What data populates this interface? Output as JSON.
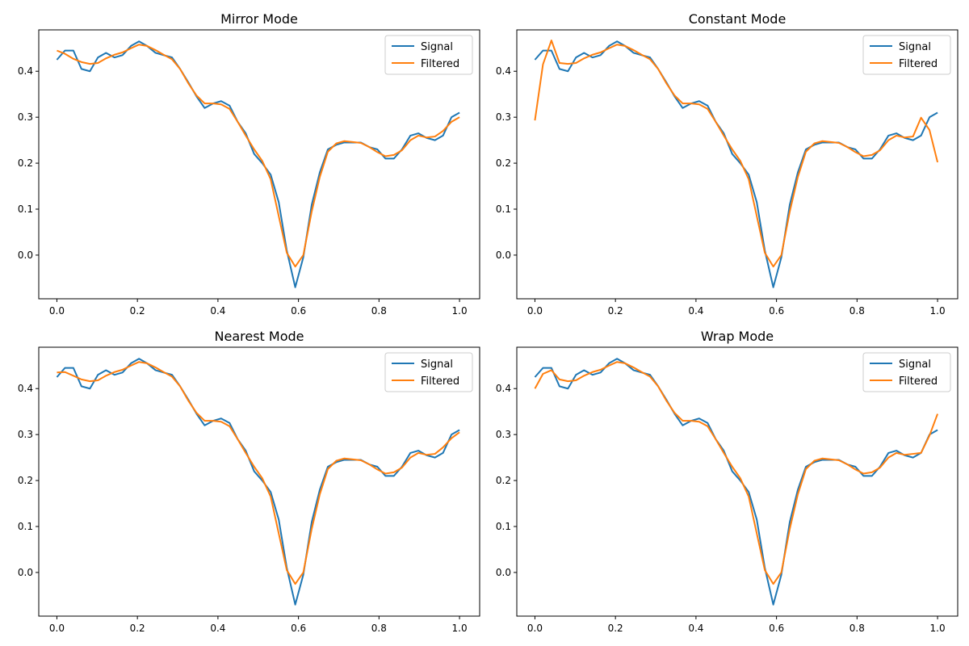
{
  "figure": {
    "colors": {
      "signal": "#1f77b4",
      "filtered": "#ff7f0e"
    }
  },
  "chart_data": [
    {
      "type": "line",
      "title": "Mirror Mode",
      "xlabel": "",
      "ylabel": "",
      "xlim": [
        -0.045,
        1.05
      ],
      "ylim": [
        -0.095,
        0.49
      ],
      "xticks": [
        0.0,
        0.2,
        0.4,
        0.6,
        0.8,
        1.0
      ],
      "yticks": [
        0.0,
        0.1,
        0.2,
        0.3,
        0.4
      ],
      "legend_position": "upper right",
      "series": [
        {
          "name": "Signal",
          "color": "#1f77b4",
          "x": [
            0.0,
            0.02,
            0.041,
            0.061,
            0.082,
            0.102,
            0.122,
            0.143,
            0.163,
            0.184,
            0.204,
            0.224,
            0.245,
            0.265,
            0.286,
            0.306,
            0.327,
            0.347,
            0.367,
            0.388,
            0.408,
            0.429,
            0.449,
            0.469,
            0.49,
            0.51,
            0.531,
            0.551,
            0.571,
            0.592,
            0.612,
            0.633,
            0.653,
            0.673,
            0.694,
            0.714,
            0.735,
            0.755,
            0.776,
            0.796,
            0.816,
            0.837,
            0.857,
            0.878,
            0.898,
            0.918,
            0.939,
            0.959,
            0.98,
            1.0
          ],
          "y": [
            0.425,
            0.445,
            0.445,
            0.405,
            0.4,
            0.43,
            0.44,
            0.43,
            0.435,
            0.455,
            0.465,
            0.455,
            0.44,
            0.435,
            0.43,
            0.405,
            0.375,
            0.345,
            0.32,
            0.33,
            0.335,
            0.325,
            0.29,
            0.265,
            0.22,
            0.2,
            0.175,
            0.115,
            0.01,
            -0.07,
            -0.005,
            0.11,
            0.18,
            0.23,
            0.24,
            0.245,
            0.245,
            0.245,
            0.235,
            0.23,
            0.21,
            0.21,
            0.23,
            0.26,
            0.265,
            0.255,
            0.25,
            0.26,
            0.3,
            0.31
          ]
        },
        {
          "name": "Filtered",
          "color": "#ff7f0e",
          "x": [
            0.0,
            0.02,
            0.041,
            0.061,
            0.082,
            0.102,
            0.122,
            0.143,
            0.163,
            0.184,
            0.204,
            0.224,
            0.245,
            0.265,
            0.286,
            0.306,
            0.327,
            0.347,
            0.367,
            0.388,
            0.408,
            0.429,
            0.449,
            0.469,
            0.49,
            0.51,
            0.531,
            0.551,
            0.571,
            0.592,
            0.612,
            0.633,
            0.653,
            0.673,
            0.694,
            0.714,
            0.735,
            0.755,
            0.776,
            0.796,
            0.816,
            0.837,
            0.857,
            0.878,
            0.898,
            0.918,
            0.939,
            0.959,
            0.98,
            1.0
          ],
          "y": [
            0.445,
            0.438,
            0.427,
            0.42,
            0.416,
            0.418,
            0.428,
            0.436,
            0.441,
            0.45,
            0.458,
            0.455,
            0.446,
            0.436,
            0.426,
            0.405,
            0.373,
            0.347,
            0.33,
            0.33,
            0.328,
            0.318,
            0.29,
            0.26,
            0.23,
            0.205,
            0.165,
            0.085,
            0.005,
            -0.025,
            0.0,
            0.095,
            0.17,
            0.225,
            0.243,
            0.248,
            0.246,
            0.244,
            0.235,
            0.224,
            0.215,
            0.218,
            0.228,
            0.25,
            0.26,
            0.256,
            0.258,
            0.27,
            0.29,
            0.3
          ]
        }
      ]
    },
    {
      "type": "line",
      "title": "Constant Mode",
      "xlabel": "",
      "ylabel": "",
      "xlim": [
        -0.045,
        1.05
      ],
      "ylim": [
        -0.095,
        0.49
      ],
      "xticks": [
        0.0,
        0.2,
        0.4,
        0.6,
        0.8,
        1.0
      ],
      "yticks": [
        0.0,
        0.1,
        0.2,
        0.3,
        0.4
      ],
      "legend_position": "upper right",
      "series": [
        {
          "name": "Signal",
          "color": "#1f77b4",
          "x": [
            0.0,
            0.02,
            0.041,
            0.061,
            0.082,
            0.102,
            0.122,
            0.143,
            0.163,
            0.184,
            0.204,
            0.224,
            0.245,
            0.265,
            0.286,
            0.306,
            0.327,
            0.347,
            0.367,
            0.388,
            0.408,
            0.429,
            0.449,
            0.469,
            0.49,
            0.51,
            0.531,
            0.551,
            0.571,
            0.592,
            0.612,
            0.633,
            0.653,
            0.673,
            0.694,
            0.714,
            0.735,
            0.755,
            0.776,
            0.796,
            0.816,
            0.837,
            0.857,
            0.878,
            0.898,
            0.918,
            0.939,
            0.959,
            0.98,
            1.0
          ],
          "y": [
            0.425,
            0.445,
            0.445,
            0.405,
            0.4,
            0.43,
            0.44,
            0.43,
            0.435,
            0.455,
            0.465,
            0.455,
            0.44,
            0.435,
            0.43,
            0.405,
            0.375,
            0.345,
            0.32,
            0.33,
            0.335,
            0.325,
            0.29,
            0.265,
            0.22,
            0.2,
            0.175,
            0.115,
            0.01,
            -0.07,
            -0.005,
            0.11,
            0.18,
            0.23,
            0.24,
            0.245,
            0.245,
            0.245,
            0.235,
            0.23,
            0.21,
            0.21,
            0.23,
            0.26,
            0.265,
            0.255,
            0.25,
            0.26,
            0.3,
            0.31
          ]
        },
        {
          "name": "Filtered",
          "color": "#ff7f0e",
          "x": [
            0.0,
            0.02,
            0.041,
            0.061,
            0.082,
            0.102,
            0.122,
            0.143,
            0.163,
            0.184,
            0.204,
            0.224,
            0.245,
            0.265,
            0.286,
            0.306,
            0.327,
            0.347,
            0.367,
            0.388,
            0.408,
            0.429,
            0.449,
            0.469,
            0.49,
            0.51,
            0.531,
            0.551,
            0.571,
            0.592,
            0.612,
            0.633,
            0.653,
            0.673,
            0.694,
            0.714,
            0.735,
            0.755,
            0.776,
            0.796,
            0.816,
            0.837,
            0.857,
            0.878,
            0.898,
            0.918,
            0.939,
            0.959,
            0.98,
            1.0
          ],
          "y": [
            0.293,
            0.415,
            0.467,
            0.418,
            0.416,
            0.418,
            0.428,
            0.436,
            0.441,
            0.45,
            0.458,
            0.455,
            0.446,
            0.436,
            0.426,
            0.405,
            0.373,
            0.347,
            0.33,
            0.33,
            0.328,
            0.318,
            0.29,
            0.26,
            0.23,
            0.205,
            0.165,
            0.085,
            0.005,
            -0.025,
            0.0,
            0.095,
            0.17,
            0.225,
            0.243,
            0.248,
            0.246,
            0.244,
            0.235,
            0.224,
            0.215,
            0.218,
            0.228,
            0.25,
            0.26,
            0.256,
            0.258,
            0.299,
            0.272,
            0.202
          ]
        }
      ]
    },
    {
      "type": "line",
      "title": "Nearest Mode",
      "xlabel": "",
      "ylabel": "",
      "xlim": [
        -0.045,
        1.05
      ],
      "ylim": [
        -0.095,
        0.49
      ],
      "xticks": [
        0.0,
        0.2,
        0.4,
        0.6,
        0.8,
        1.0
      ],
      "yticks": [
        0.0,
        0.1,
        0.2,
        0.3,
        0.4
      ],
      "legend_position": "upper right",
      "series": [
        {
          "name": "Signal",
          "color": "#1f77b4",
          "x": [
            0.0,
            0.02,
            0.041,
            0.061,
            0.082,
            0.102,
            0.122,
            0.143,
            0.163,
            0.184,
            0.204,
            0.224,
            0.245,
            0.265,
            0.286,
            0.306,
            0.327,
            0.347,
            0.367,
            0.388,
            0.408,
            0.429,
            0.449,
            0.469,
            0.49,
            0.51,
            0.531,
            0.551,
            0.571,
            0.592,
            0.612,
            0.633,
            0.653,
            0.673,
            0.694,
            0.714,
            0.735,
            0.755,
            0.776,
            0.796,
            0.816,
            0.837,
            0.857,
            0.878,
            0.898,
            0.918,
            0.939,
            0.959,
            0.98,
            1.0
          ],
          "y": [
            0.425,
            0.445,
            0.445,
            0.405,
            0.4,
            0.43,
            0.44,
            0.43,
            0.435,
            0.455,
            0.465,
            0.455,
            0.44,
            0.435,
            0.43,
            0.405,
            0.375,
            0.345,
            0.32,
            0.33,
            0.335,
            0.325,
            0.29,
            0.265,
            0.22,
            0.2,
            0.175,
            0.115,
            0.01,
            -0.07,
            -0.005,
            0.11,
            0.18,
            0.23,
            0.24,
            0.245,
            0.245,
            0.245,
            0.235,
            0.23,
            0.21,
            0.21,
            0.23,
            0.26,
            0.265,
            0.255,
            0.25,
            0.26,
            0.3,
            0.31
          ]
        },
        {
          "name": "Filtered",
          "color": "#ff7f0e",
          "x": [
            0.0,
            0.02,
            0.041,
            0.061,
            0.082,
            0.102,
            0.122,
            0.143,
            0.163,
            0.184,
            0.204,
            0.224,
            0.245,
            0.265,
            0.286,
            0.306,
            0.327,
            0.347,
            0.367,
            0.388,
            0.408,
            0.429,
            0.449,
            0.469,
            0.49,
            0.51,
            0.531,
            0.551,
            0.571,
            0.592,
            0.612,
            0.633,
            0.653,
            0.673,
            0.694,
            0.714,
            0.735,
            0.755,
            0.776,
            0.796,
            0.816,
            0.837,
            0.857,
            0.878,
            0.898,
            0.918,
            0.939,
            0.959,
            0.98,
            1.0
          ],
          "y": [
            0.435,
            0.436,
            0.428,
            0.42,
            0.416,
            0.418,
            0.428,
            0.436,
            0.441,
            0.45,
            0.458,
            0.455,
            0.446,
            0.436,
            0.426,
            0.405,
            0.373,
            0.347,
            0.33,
            0.33,
            0.328,
            0.318,
            0.29,
            0.26,
            0.23,
            0.205,
            0.165,
            0.085,
            0.005,
            -0.025,
            0.0,
            0.095,
            0.17,
            0.225,
            0.243,
            0.248,
            0.246,
            0.244,
            0.235,
            0.224,
            0.215,
            0.218,
            0.228,
            0.25,
            0.26,
            0.256,
            0.258,
            0.272,
            0.292,
            0.305
          ]
        }
      ]
    },
    {
      "type": "line",
      "title": "Wrap Mode",
      "xlabel": "",
      "ylabel": "",
      "xlim": [
        -0.045,
        1.05
      ],
      "ylim": [
        -0.095,
        0.49
      ],
      "xticks": [
        0.0,
        0.2,
        0.4,
        0.6,
        0.8,
        1.0
      ],
      "yticks": [
        0.0,
        0.1,
        0.2,
        0.3,
        0.4
      ],
      "legend_position": "upper right",
      "series": [
        {
          "name": "Signal",
          "color": "#1f77b4",
          "x": [
            0.0,
            0.02,
            0.041,
            0.061,
            0.082,
            0.102,
            0.122,
            0.143,
            0.163,
            0.184,
            0.204,
            0.224,
            0.245,
            0.265,
            0.286,
            0.306,
            0.327,
            0.347,
            0.367,
            0.388,
            0.408,
            0.429,
            0.449,
            0.469,
            0.49,
            0.51,
            0.531,
            0.551,
            0.571,
            0.592,
            0.612,
            0.633,
            0.653,
            0.673,
            0.694,
            0.714,
            0.735,
            0.755,
            0.776,
            0.796,
            0.816,
            0.837,
            0.857,
            0.878,
            0.898,
            0.918,
            0.939,
            0.959,
            0.98,
            1.0
          ],
          "y": [
            0.425,
            0.445,
            0.445,
            0.405,
            0.4,
            0.43,
            0.44,
            0.43,
            0.435,
            0.455,
            0.465,
            0.455,
            0.44,
            0.435,
            0.43,
            0.405,
            0.375,
            0.345,
            0.32,
            0.33,
            0.335,
            0.325,
            0.29,
            0.265,
            0.22,
            0.2,
            0.175,
            0.115,
            0.01,
            -0.07,
            -0.005,
            0.11,
            0.18,
            0.23,
            0.24,
            0.245,
            0.245,
            0.245,
            0.235,
            0.23,
            0.21,
            0.21,
            0.23,
            0.26,
            0.265,
            0.255,
            0.25,
            0.26,
            0.3,
            0.31
          ]
        },
        {
          "name": "Filtered",
          "color": "#ff7f0e",
          "x": [
            0.0,
            0.02,
            0.041,
            0.061,
            0.082,
            0.102,
            0.122,
            0.143,
            0.163,
            0.184,
            0.204,
            0.224,
            0.245,
            0.265,
            0.286,
            0.306,
            0.327,
            0.347,
            0.367,
            0.388,
            0.408,
            0.429,
            0.449,
            0.469,
            0.49,
            0.51,
            0.531,
            0.551,
            0.571,
            0.592,
            0.612,
            0.633,
            0.653,
            0.673,
            0.694,
            0.714,
            0.735,
            0.755,
            0.776,
            0.796,
            0.816,
            0.837,
            0.857,
            0.878,
            0.898,
            0.918,
            0.939,
            0.959,
            0.98,
            1.0
          ],
          "y": [
            0.4,
            0.432,
            0.44,
            0.42,
            0.416,
            0.418,
            0.428,
            0.436,
            0.441,
            0.45,
            0.458,
            0.455,
            0.446,
            0.436,
            0.426,
            0.405,
            0.373,
            0.347,
            0.33,
            0.33,
            0.328,
            0.318,
            0.29,
            0.26,
            0.23,
            0.205,
            0.165,
            0.085,
            0.005,
            -0.025,
            0.0,
            0.095,
            0.17,
            0.225,
            0.243,
            0.248,
            0.246,
            0.244,
            0.235,
            0.224,
            0.215,
            0.218,
            0.228,
            0.25,
            0.26,
            0.256,
            0.258,
            0.26,
            0.298,
            0.345
          ]
        }
      ]
    }
  ]
}
